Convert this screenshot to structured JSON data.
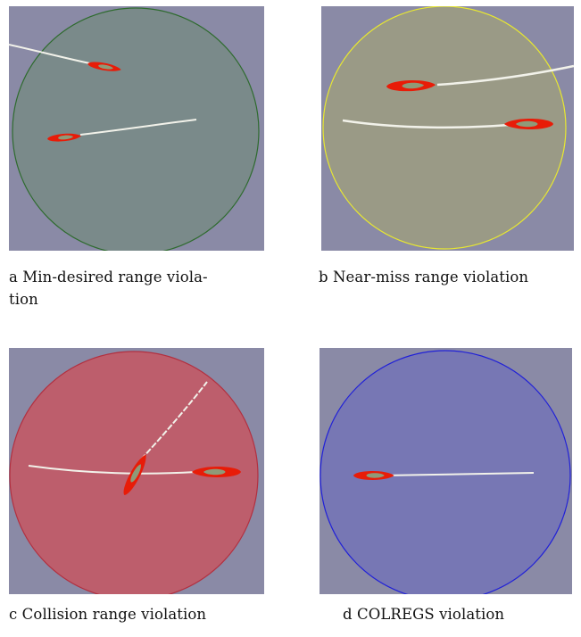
{
  "colors": {
    "background": "#8a8aa6",
    "track": "#f2f2ea",
    "hull": "#e81c08",
    "deck": "#8f9a78"
  },
  "panels": [
    {
      "caption": "a Min-desired range viola-\ntion",
      "zone": "min-desired",
      "circle_fill": "#7a8a8a",
      "circle_stroke": "#2e6b2e"
    },
    {
      "caption": "b Near-miss range violation",
      "zone": "near-miss",
      "circle_fill": "#9a9a86",
      "circle_stroke": "#e8e830"
    },
    {
      "caption": "c Collision range violation",
      "zone": "collision",
      "circle_fill": "#bd5e6c",
      "circle_stroke": "#b23040"
    },
    {
      "caption": "d COLREGS violation",
      "zone": "colregs",
      "circle_fill": "#7777b4",
      "circle_stroke": "#2020d8"
    }
  ]
}
